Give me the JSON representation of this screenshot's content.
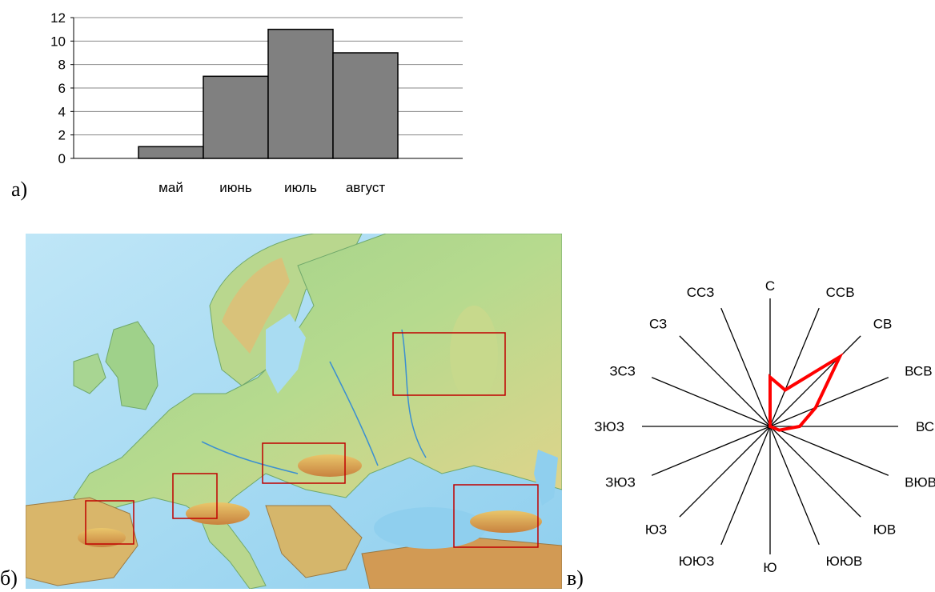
{
  "panels": {
    "a_label": "а)",
    "b_label": "б)",
    "c_label": "в)"
  },
  "chart_data": [
    {
      "type": "bar",
      "categories": [
        "",
        "май",
        "июнь",
        "июль",
        "август",
        ""
      ],
      "values": [
        0,
        1,
        7,
        11,
        9,
        0
      ],
      "ylim": [
        0,
        12
      ],
      "yticks": [
        0,
        2,
        4,
        6,
        8,
        10,
        12
      ],
      "grid": true,
      "bar_color": "#808080"
    },
    {
      "type": "radar",
      "directions": [
        "С",
        "ССВ",
        "СВ",
        "ВСВ",
        "ВСВ",
        "ВЮВ",
        "ЮВ",
        "ЮЮВ",
        "Ю",
        "ЮЮЗ",
        "ЮЗ",
        "ЗЮЗ",
        "ЗЮЗ",
        "ЗСЗ",
        "СЗ",
        "ССЗ"
      ],
      "values": [
        5,
        4,
        10,
        5,
        3,
        1,
        0,
        0,
        0,
        0,
        0,
        0,
        0,
        0,
        0,
        0
      ],
      "rmax": 13,
      "line_color": "#ff0000"
    }
  ],
  "map": {
    "description_icons": [
      "europe-physical-map"
    ],
    "highlight_color": "#c00000"
  }
}
